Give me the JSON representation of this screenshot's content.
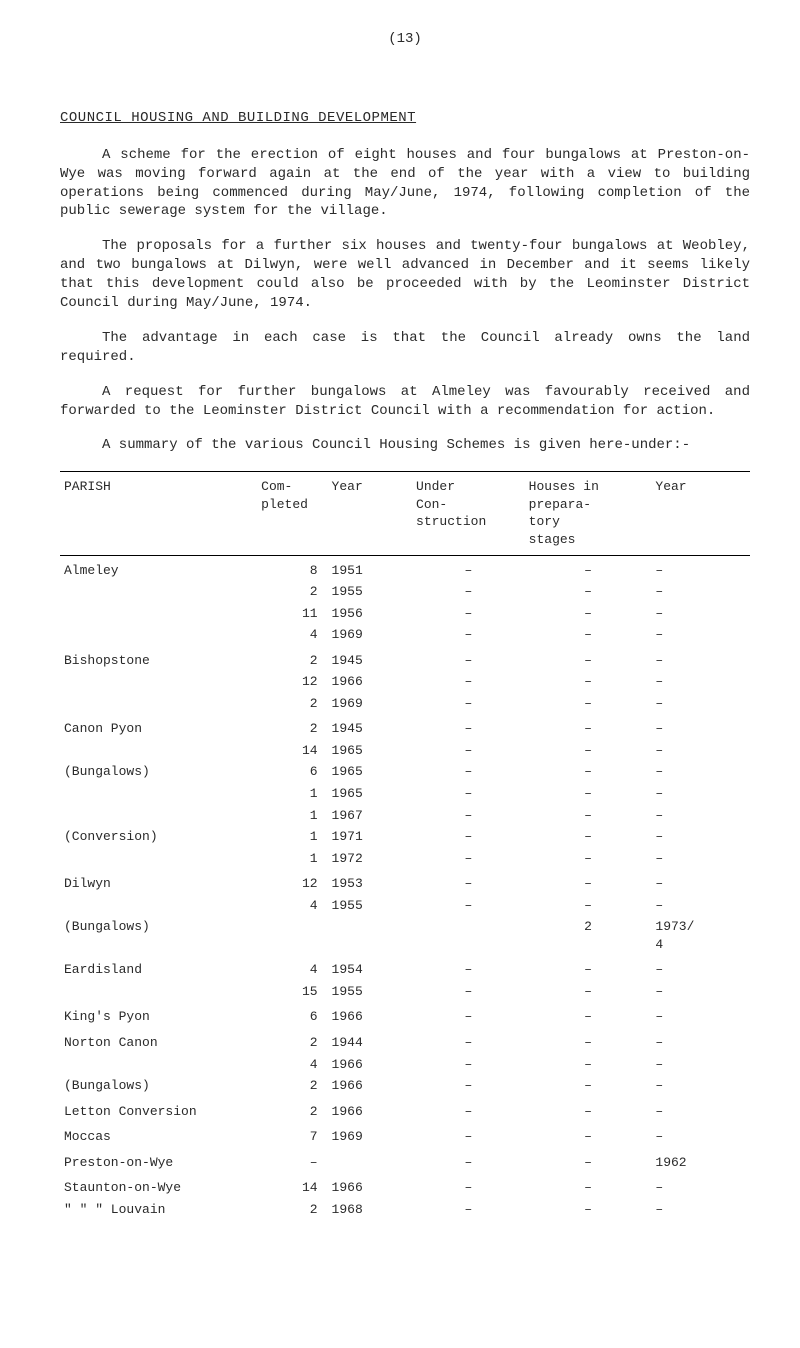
{
  "page_number": "(13)",
  "section_title": "COUNCIL HOUSING AND BUILDING DEVELOPMENT",
  "paragraphs": {
    "p1": "A scheme for the erection of eight houses and four bungalows at Preston-on-Wye was moving forward again at the end of the year with a view to building operations being commenced during May/June, 1974, following completion of the public sewerage system for the village.",
    "p2": "The proposals for a further six houses and twenty-four bungalows at Weobley, and two bungalows at Dilwyn, were well advanced in December and it seems likely that this development could also be proceeded with by the Leominster District Council during May/June, 1974.",
    "p3": "The advantage in each case is that the Council already owns the land required.",
    "p4": "A request for further bungalows at Almeley was favourably received and forwarded to the Leominster District Council with a recommendation for action.",
    "p5": "A summary of the various Council Housing Schemes is given here-under:-"
  },
  "table": {
    "headers": {
      "parish": "PARISH",
      "completed": "Com-\npleted",
      "year": "Year",
      "under": "Under\nCon-\nstruction",
      "houses": "Houses in\nprepara-\ntory\nstages",
      "year2": "Year"
    },
    "rows": [
      {
        "parish": "Almeley",
        "com": "8",
        "yr": "1951",
        "und": "–",
        "hou": "–",
        "yrr": "–",
        "section": true
      },
      {
        "parish": "",
        "com": "2",
        "yr": "1955",
        "und": "–",
        "hou": "–",
        "yrr": "–"
      },
      {
        "parish": "",
        "com": "11",
        "yr": "1956",
        "und": "–",
        "hou": "–",
        "yrr": "–"
      },
      {
        "parish": "",
        "com": "4",
        "yr": "1969",
        "und": "–",
        "hou": "–",
        "yrr": "–"
      },
      {
        "parish": "Bishopstone",
        "com": "2",
        "yr": "1945",
        "und": "–",
        "hou": "–",
        "yrr": "–",
        "section": true
      },
      {
        "parish": "",
        "com": "12",
        "yr": "1966",
        "und": "–",
        "hou": "–",
        "yrr": "–"
      },
      {
        "parish": "",
        "com": "2",
        "yr": "1969",
        "und": "–",
        "hou": "–",
        "yrr": "–"
      },
      {
        "parish": "Canon Pyon",
        "com": "2",
        "yr": "1945",
        "und": "–",
        "hou": "–",
        "yrr": "–",
        "section": true
      },
      {
        "parish": "",
        "com": "14",
        "yr": "1965",
        "und": "–",
        "hou": "–",
        "yrr": "–"
      },
      {
        "parish": "(Bungalows)",
        "com": "6",
        "yr": "1965",
        "und": "–",
        "hou": "–",
        "yrr": "–"
      },
      {
        "parish": "",
        "com": "1",
        "yr": "1965",
        "und": "–",
        "hou": "–",
        "yrr": "–"
      },
      {
        "parish": "",
        "com": "1",
        "yr": "1967",
        "und": "–",
        "hou": "–",
        "yrr": "–"
      },
      {
        "parish": "(Conversion)",
        "com": "1",
        "yr": "1971",
        "und": "–",
        "hou": "–",
        "yrr": "–"
      },
      {
        "parish": "",
        "com": "1",
        "yr": "1972",
        "und": "–",
        "hou": "–",
        "yrr": "–"
      },
      {
        "parish": "Dilwyn",
        "com": "12",
        "yr": "1953",
        "und": "–",
        "hou": "–",
        "yrr": "–",
        "section": true
      },
      {
        "parish": "",
        "com": "4",
        "yr": "1955",
        "und": "–",
        "hou": "–",
        "yrr": "–"
      },
      {
        "parish": "(Bungalows)",
        "com": "",
        "yr": "",
        "und": "",
        "hou": "2",
        "yrr": "1973/\n4"
      },
      {
        "parish": "Eardisland",
        "com": "4",
        "yr": "1954",
        "und": "–",
        "hou": "–",
        "yrr": "–",
        "section": true
      },
      {
        "parish": "",
        "com": "15",
        "yr": "1955",
        "und": "–",
        "hou": "–",
        "yrr": "–"
      },
      {
        "parish": "King's Pyon",
        "com": "6",
        "yr": "1966",
        "und": "–",
        "hou": "–",
        "yrr": "–",
        "section": true
      },
      {
        "parish": "Norton Canon",
        "com": "2",
        "yr": "1944",
        "und": "–",
        "hou": "–",
        "yrr": "–",
        "section": true
      },
      {
        "parish": "",
        "com": "4",
        "yr": "1966",
        "und": "–",
        "hou": "–",
        "yrr": "–"
      },
      {
        "parish": "(Bungalows)",
        "com": "2",
        "yr": "1966",
        "und": "–",
        "hou": "–",
        "yrr": "–"
      },
      {
        "parish": "Letton Conversion",
        "com": "2",
        "yr": "1966",
        "und": "–",
        "hou": "–",
        "yrr": "–",
        "section": true
      },
      {
        "parish": "Moccas",
        "com": "7",
        "yr": "1969",
        "und": "–",
        "hou": "–",
        "yrr": "–",
        "section": true
      },
      {
        "parish": "Preston-on-Wye",
        "com": "–",
        "yr": "",
        "und": "–",
        "hou": "–",
        "yrr": "1962",
        "section": true
      },
      {
        "parish": "Staunton-on-Wye",
        "com": "14",
        "yr": "1966",
        "und": "–",
        "hou": "–",
        "yrr": "–",
        "section": true
      },
      {
        "parish": "\"     \"     \"  Louvain",
        "com": "2",
        "yr": "1968",
        "und": "–",
        "hou": "–",
        "yrr": "–"
      }
    ]
  }
}
